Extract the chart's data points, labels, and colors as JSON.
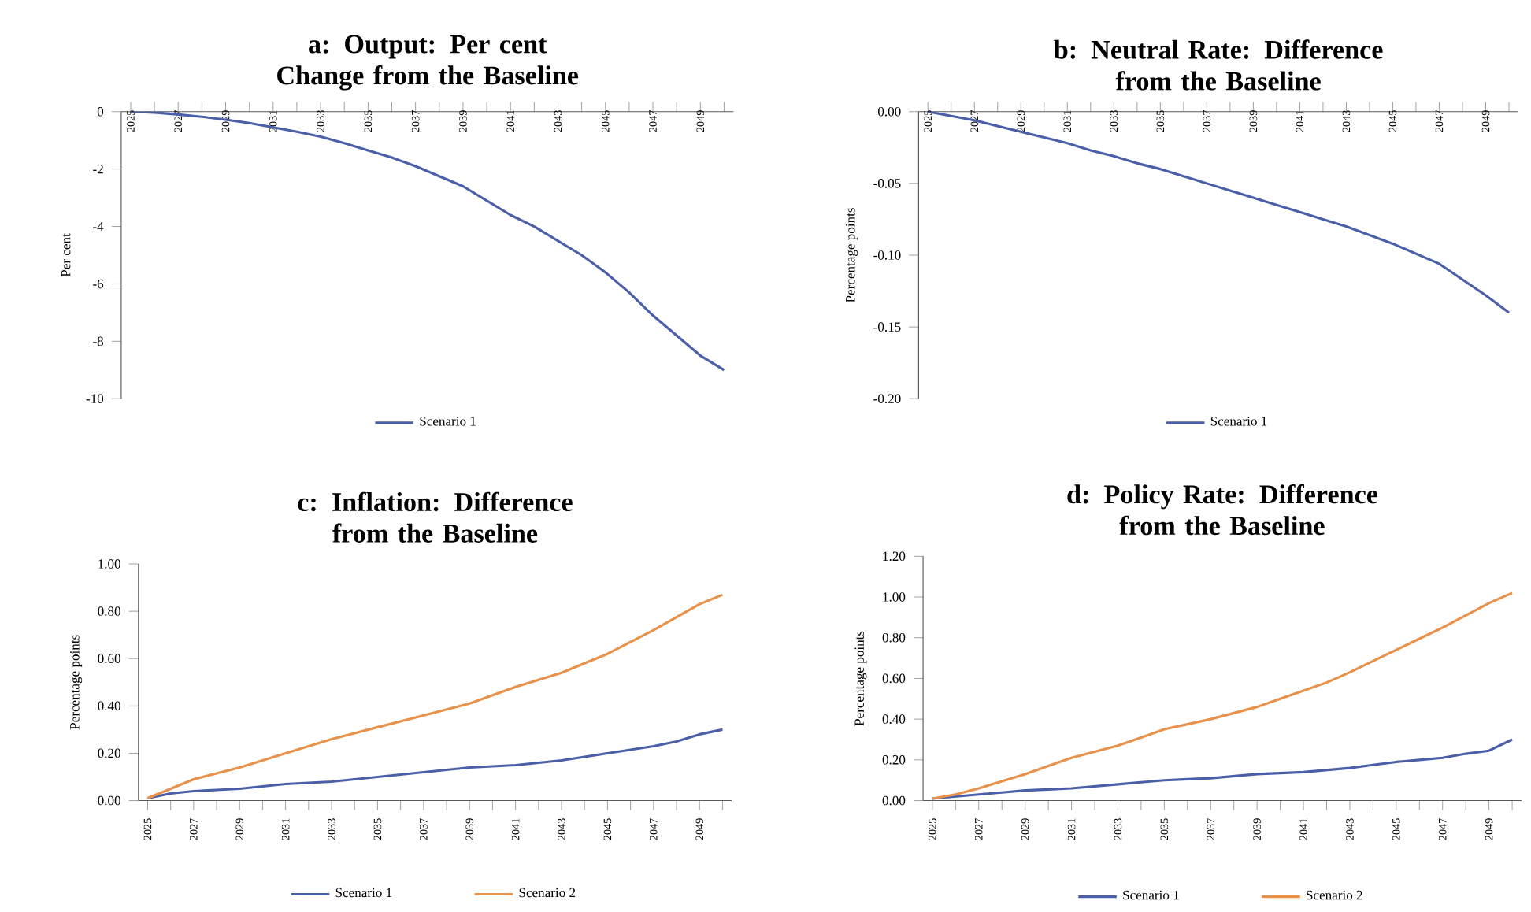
{
  "chart_data": [
    {
      "type": "line",
      "title": "a: Output: Per cent Change from the Baseline",
      "ylabel": "Per cent",
      "legend": "bottom",
      "x": [
        2025,
        2026,
        2027,
        2028,
        2029,
        2030,
        2031,
        2032,
        2033,
        2034,
        2035,
        2036,
        2037,
        2038,
        2039,
        2040,
        2041,
        2042,
        2043,
        2044,
        2045,
        2046,
        2047,
        2048,
        2049,
        2050
      ],
      "series": [
        {
          "name": "Scenario 1",
          "color": "#4a5fa8",
          "values": [
            0,
            -0.03,
            -0.1,
            -0.18,
            -0.28,
            -0.4,
            -0.55,
            -0.7,
            -0.87,
            -1.1,
            -1.35,
            -1.6,
            -1.9,
            -2.25,
            -2.6,
            -3.1,
            -3.6,
            -4.0,
            -4.5,
            -5.0,
            -5.6,
            -6.3,
            -7.1,
            -7.8,
            -8.5,
            -9.0
          ]
        }
      ],
      "xlim": [
        2024.6,
        2050.4
      ],
      "xticks": [
        {
          "value": 2025,
          "label": "2025"
        },
        {
          "value": 2026,
          "label": null
        },
        {
          "value": 2027,
          "label": "2027"
        },
        {
          "value": 2028,
          "label": null
        },
        {
          "value": 2029,
          "label": "2029"
        },
        {
          "value": 2030,
          "label": null
        },
        {
          "value": 2031,
          "label": "2031"
        },
        {
          "value": 2032,
          "label": null
        },
        {
          "value": 2033,
          "label": "2033"
        },
        {
          "value": 2034,
          "label": null
        },
        {
          "value": 2035,
          "label": "2035"
        },
        {
          "value": 2036,
          "label": null
        },
        {
          "value": 2037,
          "label": "2037"
        },
        {
          "value": 2038,
          "label": null
        },
        {
          "value": 2039,
          "label": "2039"
        },
        {
          "value": 2040,
          "label": null
        },
        {
          "value": 2041,
          "label": "2041"
        },
        {
          "value": 2042,
          "label": null
        },
        {
          "value": 2043,
          "label": "2043"
        },
        {
          "value": 2044,
          "label": null
        },
        {
          "value": 2045,
          "label": "2045"
        },
        {
          "value": 2046,
          "label": null
        },
        {
          "value": 2047,
          "label": "2047"
        },
        {
          "value": 2048,
          "label": null
        },
        {
          "value": 2049,
          "label": "2049"
        },
        {
          "value": 2050,
          "label": null
        }
      ],
      "ylim": [
        -10,
        0
      ],
      "yticks": [
        -10,
        -8,
        -6,
        -4,
        -2,
        0
      ]
    },
    {
      "type": "line",
      "title": "b: Neutral Rate: Difference from the Baseline",
      "ylabel": "Percentage points",
      "legend": "bottom",
      "x": [
        2025,
        2026,
        2027,
        2028,
        2029,
        2030,
        2031,
        2032,
        2033,
        2034,
        2035,
        2036,
        2037,
        2038,
        2039,
        2040,
        2041,
        2042,
        2043,
        2044,
        2045,
        2046,
        2047,
        2048,
        2049,
        2050
      ],
      "series": [
        {
          "name": "Scenario 1",
          "color": "#4a5fa8",
          "values": [
            0,
            -0.003,
            -0.006,
            -0.01,
            -0.014,
            -0.018,
            -0.022,
            -0.027,
            -0.031,
            -0.036,
            -0.04,
            -0.045,
            -0.05,
            -0.055,
            -0.06,
            -0.065,
            -0.07,
            -0.075,
            -0.08,
            -0.086,
            -0.092,
            -0.099,
            -0.106,
            -0.117,
            -0.128,
            -0.14
          ]
        }
      ],
      "xlim": [
        2024.6,
        2050.4
      ],
      "xticks": [
        {
          "value": 2025,
          "label": "2025"
        },
        {
          "value": 2026,
          "label": null
        },
        {
          "value": 2027,
          "label": "2027"
        },
        {
          "value": 2028,
          "label": null
        },
        {
          "value": 2029,
          "label": "2029"
        },
        {
          "value": 2030,
          "label": null
        },
        {
          "value": 2031,
          "label": "2031"
        },
        {
          "value": 2032,
          "label": null
        },
        {
          "value": 2033,
          "label": "2033"
        },
        {
          "value": 2034,
          "label": null
        },
        {
          "value": 2035,
          "label": "2035"
        },
        {
          "value": 2036,
          "label": null
        },
        {
          "value": 2037,
          "label": "2037"
        },
        {
          "value": 2038,
          "label": null
        },
        {
          "value": 2039,
          "label": "2039"
        },
        {
          "value": 2040,
          "label": null
        },
        {
          "value": 2041,
          "label": "2041"
        },
        {
          "value": 2042,
          "label": null
        },
        {
          "value": 2043,
          "label": "2043"
        },
        {
          "value": 2044,
          "label": null
        },
        {
          "value": 2045,
          "label": "2045"
        },
        {
          "value": 2046,
          "label": null
        },
        {
          "value": 2047,
          "label": "2047"
        },
        {
          "value": 2048,
          "label": null
        },
        {
          "value": 2049,
          "label": "2049"
        },
        {
          "value": 2050,
          "label": null
        }
      ],
      "ylim": [
        -0.2,
        0
      ],
      "yticks": [
        {
          "value": -0.2,
          "label": "-0.20"
        },
        {
          "value": -0.15,
          "label": "-0.15"
        },
        {
          "value": -0.1,
          "label": "-0.10"
        },
        {
          "value": -0.05,
          "label": "-0.05"
        },
        {
          "value": 0,
          "label": "0.00"
        }
      ]
    },
    {
      "type": "line",
      "title": "c: Inflation: Difference from the Baseline",
      "ylabel": "Percentage points",
      "legend": "bottom",
      "x": [
        2025,
        2026,
        2027,
        2028,
        2029,
        2030,
        2031,
        2032,
        2033,
        2034,
        2035,
        2036,
        2037,
        2038,
        2039,
        2040,
        2041,
        2042,
        2043,
        2044,
        2045,
        2046,
        2047,
        2048,
        2049,
        2050
      ],
      "series": [
        {
          "name": "Scenario 1",
          "color": "#4a5fa8",
          "values": [
            0.01,
            0.03,
            0.04,
            0.045,
            0.05,
            0.06,
            0.07,
            0.075,
            0.08,
            0.09,
            0.1,
            0.11,
            0.12,
            0.13,
            0.14,
            0.145,
            0.15,
            0.16,
            0.17,
            0.185,
            0.2,
            0.215,
            0.23,
            0.25,
            0.28,
            0.3
          ]
        },
        {
          "name": "Scenario 2",
          "color": "#e8914a",
          "values": [
            0.01,
            0.05,
            0.09,
            0.115,
            0.14,
            0.17,
            0.2,
            0.23,
            0.26,
            0.285,
            0.31,
            0.335,
            0.36,
            0.385,
            0.41,
            0.445,
            0.48,
            0.51,
            0.54,
            0.58,
            0.62,
            0.67,
            0.72,
            0.775,
            0.83,
            0.87
          ]
        }
      ],
      "xlim": [
        2024.6,
        2050.4
      ],
      "xticks": [
        {
          "value": 2025,
          "label": "2025"
        },
        {
          "value": 2026,
          "label": null
        },
        {
          "value": 2027,
          "label": "2027"
        },
        {
          "value": 2028,
          "label": null
        },
        {
          "value": 2029,
          "label": "2029"
        },
        {
          "value": 2030,
          "label": null
        },
        {
          "value": 2031,
          "label": "2031"
        },
        {
          "value": 2032,
          "label": null
        },
        {
          "value": 2033,
          "label": "2033"
        },
        {
          "value": 2034,
          "label": null
        },
        {
          "value": 2035,
          "label": "2035"
        },
        {
          "value": 2036,
          "label": null
        },
        {
          "value": 2037,
          "label": "2037"
        },
        {
          "value": 2038,
          "label": null
        },
        {
          "value": 2039,
          "label": "2039"
        },
        {
          "value": 2040,
          "label": null
        },
        {
          "value": 2041,
          "label": "2041"
        },
        {
          "value": 2042,
          "label": null
        },
        {
          "value": 2043,
          "label": "2043"
        },
        {
          "value": 2044,
          "label": null
        },
        {
          "value": 2045,
          "label": "2045"
        },
        {
          "value": 2046,
          "label": null
        },
        {
          "value": 2047,
          "label": "2047"
        },
        {
          "value": 2048,
          "label": null
        },
        {
          "value": 2049,
          "label": "2049"
        },
        {
          "value": 2050,
          "label": null
        }
      ],
      "ylim": [
        0,
        1.0
      ],
      "yticks": [
        {
          "value": 0,
          "label": "0.00"
        },
        {
          "value": 0.2,
          "label": "0.20"
        },
        {
          "value": 0.4,
          "label": "0.40"
        },
        {
          "value": 0.6,
          "label": "0.60"
        },
        {
          "value": 0.8,
          "label": "0.80"
        },
        {
          "value": 1.0,
          "label": "1.00"
        }
      ]
    },
    {
      "type": "line",
      "title": "d: Policy Rate: Difference from the Baseline",
      "ylabel": "Percentage points",
      "legend": "bottom",
      "x": [
        2025,
        2026,
        2027,
        2028,
        2029,
        2030,
        2031,
        2032,
        2033,
        2034,
        2035,
        2036,
        2037,
        2038,
        2039,
        2040,
        2041,
        2042,
        2043,
        2044,
        2045,
        2046,
        2047,
        2048,
        2049,
        2050
      ],
      "series": [
        {
          "name": "Scenario 1",
          "color": "#4a5fa8",
          "values": [
            0.01,
            0.02,
            0.03,
            0.04,
            0.05,
            0.055,
            0.06,
            0.07,
            0.08,
            0.09,
            0.1,
            0.105,
            0.11,
            0.12,
            0.13,
            0.135,
            0.14,
            0.15,
            0.16,
            0.175,
            0.19,
            0.2,
            0.21,
            0.23,
            0.245,
            0.3
          ]
        },
        {
          "name": "Scenario 2",
          "color": "#e8914a",
          "values": [
            0.01,
            0.03,
            0.06,
            0.095,
            0.13,
            0.17,
            0.21,
            0.24,
            0.27,
            0.31,
            0.35,
            0.375,
            0.4,
            0.43,
            0.46,
            0.5,
            0.54,
            0.58,
            0.63,
            0.685,
            0.74,
            0.795,
            0.85,
            0.91,
            0.97,
            1.02
          ]
        }
      ],
      "xlim": [
        2024.6,
        2050.4
      ],
      "xticks": [
        {
          "value": 2025,
          "label": "2025"
        },
        {
          "value": 2026,
          "label": null
        },
        {
          "value": 2027,
          "label": "2027"
        },
        {
          "value": 2028,
          "label": null
        },
        {
          "value": 2029,
          "label": "2029"
        },
        {
          "value": 2030,
          "label": null
        },
        {
          "value": 2031,
          "label": "2031"
        },
        {
          "value": 2032,
          "label": null
        },
        {
          "value": 2033,
          "label": "2033"
        },
        {
          "value": 2034,
          "label": null
        },
        {
          "value": 2035,
          "label": "2035"
        },
        {
          "value": 2036,
          "label": null
        },
        {
          "value": 2037,
          "label": "2037"
        },
        {
          "value": 2038,
          "label": null
        },
        {
          "value": 2039,
          "label": "2039"
        },
        {
          "value": 2040,
          "label": null
        },
        {
          "value": 2041,
          "label": "2041"
        },
        {
          "value": 2042,
          "label": null
        },
        {
          "value": 2043,
          "label": "2043"
        },
        {
          "value": 2044,
          "label": null
        },
        {
          "value": 2045,
          "label": "2045"
        },
        {
          "value": 2046,
          "label": null
        },
        {
          "value": 2047,
          "label": "2047"
        },
        {
          "value": 2048,
          "label": null
        },
        {
          "value": 2049,
          "label": "2049"
        },
        {
          "value": 2050,
          "label": null
        }
      ],
      "ylim": [
        0,
        1.2
      ],
      "yticks": [
        {
          "value": 0,
          "label": "0.00"
        },
        {
          "value": 0.2,
          "label": "0.20"
        },
        {
          "value": 0.4,
          "label": "0.40"
        },
        {
          "value": 0.6,
          "label": "0.60"
        },
        {
          "value": 0.8,
          "label": "0.80"
        },
        {
          "value": 1.0,
          "label": "1.00"
        },
        {
          "value": 1.2,
          "label": "1.20"
        }
      ]
    }
  ]
}
